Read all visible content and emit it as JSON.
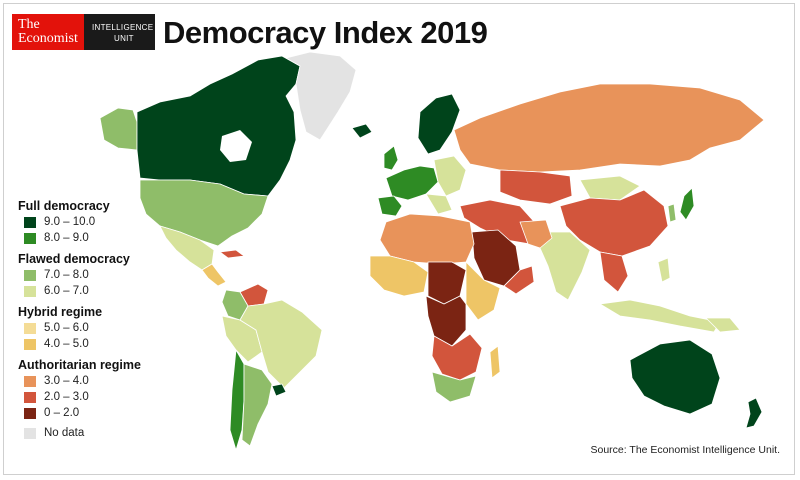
{
  "header": {
    "logo_line1": "The",
    "logo_line2": "Economist",
    "logo_unit_line1": "INTELLIGENCE",
    "logo_unit_line2": "UNIT",
    "title": "Democracy Index 2019"
  },
  "legend": {
    "full_democracy": {
      "title": "Full democracy",
      "items": [
        {
          "label": "9.0 – 10.0",
          "color": "#00441b"
        },
        {
          "label": "8.0 – 9.0",
          "color": "#2e8b24"
        }
      ]
    },
    "flawed_democracy": {
      "title": "Flawed democracy",
      "items": [
        {
          "label": "7.0 – 8.0",
          "color": "#8fbd69"
        },
        {
          "label": "6.0 – 7.0",
          "color": "#d6e29a"
        }
      ]
    },
    "hybrid_regime": {
      "title": "Hybrid regime",
      "items": [
        {
          "label": "5.0 – 6.0",
          "color": "#f4dc96"
        },
        {
          "label": "4.0 – 5.0",
          "color": "#eec566"
        }
      ]
    },
    "authoritarian_regime": {
      "title": "Authoritarian regime",
      "items": [
        {
          "label": "3.0 – 4.0",
          "color": "#e8935a"
        },
        {
          "label": "2.0 – 3.0",
          "color": "#d2553c"
        },
        {
          "label": "0 – 2.0",
          "color": "#7b2413"
        }
      ]
    },
    "no_data": {
      "label": "No data",
      "color": "#e3e3e3"
    }
  },
  "source": "Source: The Economist Intelligence Unit."
}
